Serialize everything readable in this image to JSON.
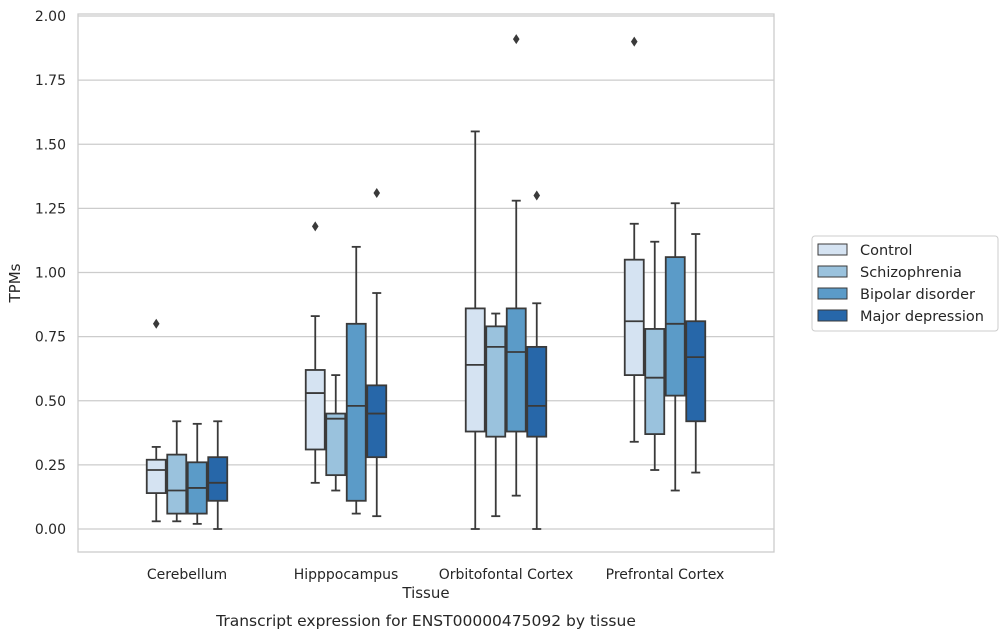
{
  "caption": "Transcript expression for ENST00000475092 by tissue",
  "chart_data": {
    "type": "boxplot",
    "title": "",
    "xlabel": "Tissue",
    "ylabel": "TPMs",
    "ylim": [
      -0.09,
      2.01
    ],
    "yticks": [
      "0.00",
      "0.25",
      "0.50",
      "0.75",
      "1.00",
      "1.25",
      "1.50",
      "1.75",
      "2.00"
    ],
    "ytick_values": [
      0,
      0.25,
      0.5,
      0.75,
      1.0,
      1.25,
      1.5,
      1.75,
      2.0
    ],
    "grid": "horizontal",
    "legend_position": "right",
    "categories": [
      "Cerebellum",
      "Hipppocampus",
      "Orbitofontal Cortex",
      "Prefrontal Cortex"
    ],
    "series": [
      {
        "name": "Control",
        "color": "#d5e3f2",
        "boxes": [
          {
            "whisker_low": 0.03,
            "q1": 0.14,
            "median": 0.23,
            "q3": 0.27,
            "whisker_high": 0.32,
            "outliers": [
              0.8
            ]
          },
          {
            "whisker_low": 0.18,
            "q1": 0.31,
            "median": 0.53,
            "q3": 0.62,
            "whisker_high": 0.83,
            "outliers": [
              1.18
            ]
          },
          {
            "whisker_low": 0.0,
            "q1": 0.38,
            "median": 0.64,
            "q3": 0.86,
            "whisker_high": 1.55,
            "outliers": []
          },
          {
            "whisker_low": 0.34,
            "q1": 0.6,
            "median": 0.81,
            "q3": 1.05,
            "whisker_high": 1.19,
            "outliers": [
              1.9
            ]
          }
        ]
      },
      {
        "name": "Schizophrenia",
        "color": "#9ac2dd",
        "boxes": [
          {
            "whisker_low": 0.03,
            "q1": 0.06,
            "median": 0.15,
            "q3": 0.29,
            "whisker_high": 0.42,
            "outliers": []
          },
          {
            "whisker_low": 0.15,
            "q1": 0.21,
            "median": 0.43,
            "q3": 0.45,
            "whisker_high": 0.6,
            "outliers": []
          },
          {
            "whisker_low": 0.05,
            "q1": 0.36,
            "median": 0.71,
            "q3": 0.79,
            "whisker_high": 0.84,
            "outliers": []
          },
          {
            "whisker_low": 0.23,
            "q1": 0.37,
            "median": 0.59,
            "q3": 0.78,
            "whisker_high": 1.12,
            "outliers": []
          }
        ]
      },
      {
        "name": "Bipolar disorder",
        "color": "#5b9bc8",
        "boxes": [
          {
            "whisker_low": 0.02,
            "q1": 0.06,
            "median": 0.16,
            "q3": 0.26,
            "whisker_high": 0.41,
            "outliers": []
          },
          {
            "whisker_low": 0.06,
            "q1": 0.11,
            "median": 0.48,
            "q3": 0.8,
            "whisker_high": 1.1,
            "outliers": []
          },
          {
            "whisker_low": 0.13,
            "q1": 0.38,
            "median": 0.69,
            "q3": 0.86,
            "whisker_high": 1.28,
            "outliers": [
              1.91
            ]
          },
          {
            "whisker_low": 0.15,
            "q1": 0.52,
            "median": 0.8,
            "q3": 1.06,
            "whisker_high": 1.27,
            "outliers": []
          }
        ]
      },
      {
        "name": "Major depression",
        "color": "#2767a9",
        "boxes": [
          {
            "whisker_low": 0.0,
            "q1": 0.11,
            "median": 0.18,
            "q3": 0.28,
            "whisker_high": 0.42,
            "outliers": []
          },
          {
            "whisker_low": 0.05,
            "q1": 0.28,
            "median": 0.45,
            "q3": 0.56,
            "whisker_high": 0.92,
            "outliers": [
              1.31
            ]
          },
          {
            "whisker_low": 0.0,
            "q1": 0.36,
            "median": 0.48,
            "q3": 0.71,
            "whisker_high": 0.88,
            "outliers": [
              1.3
            ]
          },
          {
            "whisker_low": 0.22,
            "q1": 0.42,
            "median": 0.67,
            "q3": 0.81,
            "whisker_high": 1.15,
            "outliers": []
          }
        ]
      }
    ]
  }
}
